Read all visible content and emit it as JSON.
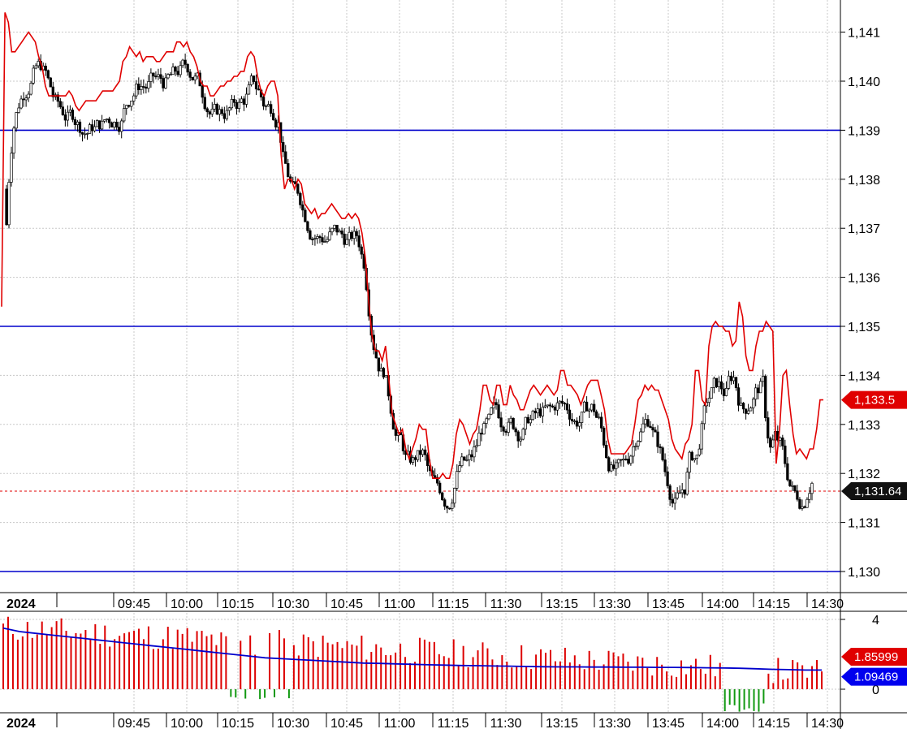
{
  "colors": {
    "price_line": "#e00000",
    "level_line": "#0000cc",
    "grid": "#c8c8c8",
    "up_candle": "#ffffff",
    "down_candle": "#000000",
    "osc_positive": "#dd0000",
    "osc_negative": "#119911",
    "osc_signal": "#0000cc",
    "badge_red": "#e00000",
    "badge_black": "#111111",
    "badge_blue": "#0000ee"
  },
  "chart_data": [
    {
      "type": "candlestick",
      "title": "",
      "year_label": "2024",
      "x_ticks": [
        "09:45",
        "10:00",
        "10:15",
        "10:30",
        "10:45",
        "11:00",
        "11:15",
        "11:30",
        "13:15",
        "13:30",
        "13:45",
        "14:00",
        "14:15",
        "14:30"
      ],
      "y_ticks": [
        "1,141",
        "1,140",
        "1,139",
        "1,138",
        "1,137",
        "1,136",
        "1,135",
        "1,134",
        "1,133",
        "1,132",
        "1,131",
        "1,130"
      ],
      "ylim": [
        1129.7,
        1141.5
      ],
      "grid": true,
      "horizontal_levels": [
        1139,
        1135,
        1130
      ],
      "current_price": 1131.64,
      "current_price_label": "1,131.64",
      "red_line_last": 1133.5,
      "red_line_last_label": "1,133.5",
      "red_line": [
        1135.4,
        1141.4,
        1141.2,
        1140.6,
        1140.6,
        1140.7,
        1140.8,
        1140.9,
        1141.0,
        1140.9,
        1140.8,
        1140.5,
        1140.3,
        1139.9,
        1139.7,
        1139.7,
        1139.7,
        1139.7,
        1139.7,
        1139.7,
        1139.8,
        1139.7,
        1139.5,
        1139.4,
        1139.5,
        1139.6,
        1139.6,
        1139.6,
        1139.6,
        1139.7,
        1139.8,
        1139.8,
        1139.8,
        1139.8,
        1139.9,
        1140.0,
        1140.4,
        1140.5,
        1140.7,
        1140.6,
        1140.5,
        1140.6,
        1140.4,
        1140.5,
        1140.5,
        1140.5,
        1140.4,
        1140.4,
        1140.5,
        1140.6,
        1140.6,
        1140.6,
        1140.8,
        1140.8,
        1140.7,
        1140.8,
        1140.6,
        1140.5,
        1140.3,
        1140.0,
        1139.9,
        1139.9,
        1139.7,
        1139.7,
        1139.8,
        1139.9,
        1139.9,
        1140.0,
        1140.0,
        1140.1,
        1140.1,
        1140.2,
        1140.2,
        1140.5,
        1140.6,
        1140.5,
        1140.1,
        1139.8,
        1139.7,
        1139.9,
        1140.0,
        1140.0,
        1139.7,
        1138.5,
        1137.8,
        1138.0,
        1138.0,
        1137.8,
        1138.0,
        1137.9,
        1137.5,
        1137.4,
        1137.3,
        1137.4,
        1137.2,
        1137.3,
        1137.3,
        1137.4,
        1137.5,
        1137.4,
        1137.3,
        1137.2,
        1137.2,
        1137.3,
        1137.2,
        1137.3,
        1137.2,
        1136.9,
        1136.4,
        1135.5,
        1134.8,
        1134.5,
        1134.5,
        1134.3,
        1134.6,
        1133.9,
        1133.2,
        1133.0,
        1132.8,
        1132.9,
        1132.5,
        1132.3,
        1132.5,
        1132.7,
        1133.0,
        1132.9,
        1132.9,
        1132.3,
        1131.9,
        1131.9,
        1131.9,
        1132.0,
        1131.9,
        1131.9,
        1132.2,
        1132.8,
        1133.1,
        1133.0,
        1132.8,
        1132.6,
        1132.8,
        1132.9,
        1133.3,
        1133.8,
        1133.8,
        1133.5,
        1133.4,
        1133.8,
        1133.8,
        1133.4,
        1133.4,
        1133.8,
        1133.6,
        1133.5,
        1133.3,
        1133.3,
        1133.5,
        1133.7,
        1133.8,
        1133.7,
        1133.6,
        1133.7,
        1133.8,
        1133.7,
        1133.6,
        1133.7,
        1134.1,
        1134.1,
        1133.8,
        1133.8,
        1133.7,
        1133.6,
        1133.4,
        1133.6,
        1133.8,
        1133.9,
        1133.9,
        1133.9,
        1133.6,
        1133.3,
        1132.7,
        1132.4,
        1132.4,
        1132.4,
        1132.4,
        1132.4,
        1132.5,
        1132.6,
        1133.0,
        1133.5,
        1133.6,
        1133.8,
        1133.7,
        1133.8,
        1133.7,
        1133.7,
        1133.5,
        1133.3,
        1133.1,
        1132.7,
        1132.5,
        1132.4,
        1132.3,
        1132.6,
        1132.7,
        1133.0,
        1134.1,
        1134.1,
        1133.5,
        1133.4,
        1134.6,
        1135.0,
        1135.1,
        1135.0,
        1135.0,
        1134.9,
        1134.9,
        1134.6,
        1134.7,
        1135.5,
        1135.2,
        1134.4,
        1134.1,
        1134.1,
        1134.6,
        1134.9,
        1134.9,
        1135.1,
        1135.0,
        1134.9,
        1132.2,
        1132.9,
        1134.0,
        1134.1,
        1133.4,
        1132.8,
        1132.4,
        1132.5,
        1132.4,
        1132.3,
        1132.5,
        1132.5,
        1132.9,
        1133.5,
        1133.5
      ]
    },
    {
      "type": "bar",
      "title": "",
      "year_label": "2024",
      "x_ticks": [
        "09:45",
        "10:00",
        "10:15",
        "10:30",
        "10:45",
        "11:00",
        "11:15",
        "11:30",
        "13:15",
        "13:30",
        "13:45",
        "14:00",
        "14:15",
        "14:30"
      ],
      "y_ticks": [
        "4",
        "0"
      ],
      "ylim": [
        -2.2,
        4.6
      ],
      "grid": true,
      "last_value_label": "1.85999",
      "signal_last_label": "1.09469",
      "signal_line": [
        3.5,
        3.3,
        3.2,
        3.1,
        3.0,
        2.9,
        2.8,
        2.7,
        2.6,
        2.5,
        2.4,
        2.3,
        2.2,
        2.1,
        2.0,
        1.9,
        1.8,
        1.75,
        1.7,
        1.65,
        1.6,
        1.55,
        1.5,
        1.48,
        1.45,
        1.43,
        1.4,
        1.38,
        1.36,
        1.35,
        1.33,
        1.32,
        1.3,
        1.29,
        1.28,
        1.28,
        1.27,
        1.27,
        1.26,
        1.26,
        1.25,
        1.25,
        1.24,
        1.23,
        1.22,
        1.2,
        1.17,
        1.14,
        1.12,
        1.1,
        1.1
      ]
    }
  ]
}
